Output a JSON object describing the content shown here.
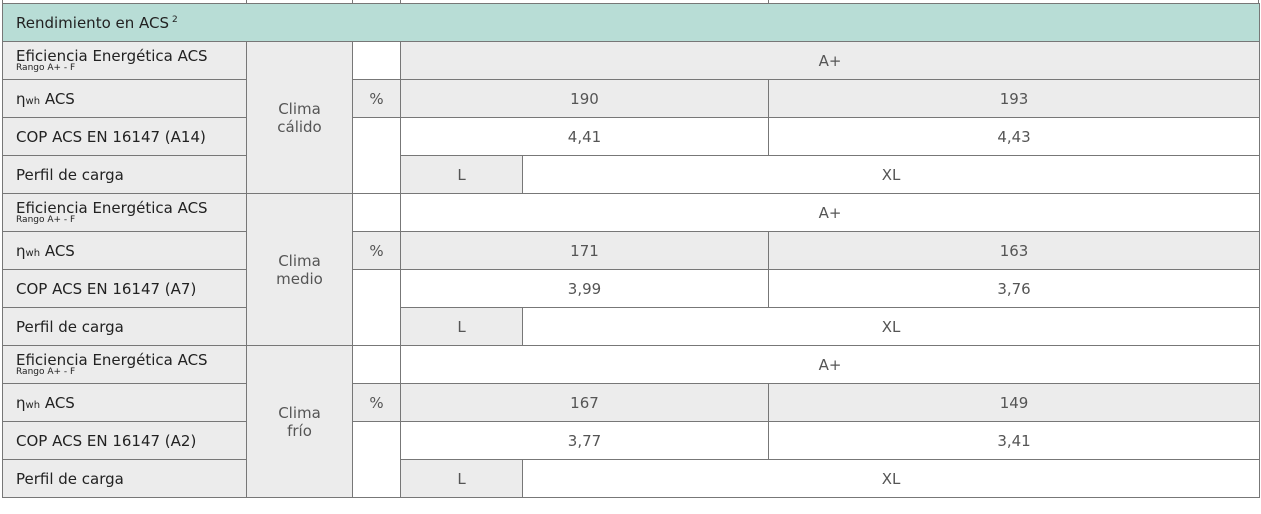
{
  "header": {
    "title": "Rendimiento en ACS",
    "superscript": "2"
  },
  "blocks": [
    {
      "climate": "Clima cálido",
      "rows": {
        "efficiency": {
          "label": "Eficiencia Energética ACS",
          "sublabel": "Rango A+ - F",
          "value": "A+"
        },
        "eta": {
          "symbol": "η",
          "subscript": "wh",
          "label": "ACS",
          "unit": "%",
          "values": [
            "190",
            "193"
          ]
        },
        "cop": {
          "label": "COP ACS EN 16147 (A14)",
          "values": [
            "4,41",
            "4,43"
          ]
        },
        "profile": {
          "label": "Perfil de carga",
          "values": [
            "L",
            "XL"
          ]
        }
      }
    },
    {
      "climate": "Clima medio",
      "rows": {
        "efficiency": {
          "label": "Eficiencia Energética ACS",
          "sublabel": "Rango A+ - F",
          "value": "A+"
        },
        "eta": {
          "symbol": "η",
          "subscript": "wh",
          "label": "ACS",
          "unit": "%",
          "values": [
            "171",
            "163"
          ]
        },
        "cop": {
          "label": "COP ACS EN 16147 (A7)",
          "values": [
            "3,99",
            "3,76"
          ]
        },
        "profile": {
          "label": "Perfil de carga",
          "values": [
            "L",
            "XL"
          ]
        }
      }
    },
    {
      "climate": "Clima frío",
      "rows": {
        "efficiency": {
          "label": "Eficiencia Energética ACS",
          "sublabel": "Rango A+ - F",
          "value": "A+"
        },
        "eta": {
          "symbol": "η",
          "subscript": "wh",
          "label": "ACS",
          "unit": "%",
          "values": [
            "167",
            "149"
          ]
        },
        "cop": {
          "label": "COP ACS EN 16147 (A2)",
          "values": [
            "3,77",
            "3,41"
          ]
        },
        "profile": {
          "label": "Perfil de carga",
          "values": [
            "L",
            "XL"
          ]
        }
      }
    }
  ]
}
